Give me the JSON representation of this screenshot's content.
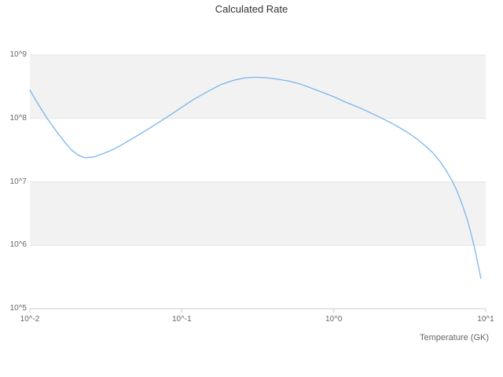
{
  "chart": {
    "title": "Calculated Rate",
    "x_axis_title": "Temperature (GK)"
  },
  "chart_data": {
    "type": "line",
    "title": "Calculated Rate",
    "xlabel": "Temperature (GK)",
    "ylabel": "",
    "x_scale": "log",
    "y_scale": "log",
    "xlim": [
      0.01,
      10
    ],
    "ylim": [
      100000,
      1000000000
    ],
    "grid": "horizontal-bands",
    "legend": "none",
    "band_color": "#f2f2f2",
    "line_color": "#7cb5ec",
    "axis_line_color": "#cccccc",
    "grid_line_color": "#e6e6e6",
    "x_ticks": [
      {
        "label": "10^-2",
        "value": 0.01
      },
      {
        "label": "10^-1",
        "value": 0.1
      },
      {
        "label": "10^0",
        "value": 1
      },
      {
        "label": "10^1",
        "value": 10
      }
    ],
    "y_ticks": [
      {
        "label": "10^5",
        "value": 100000
      },
      {
        "label": "10^6",
        "value": 1000000
      },
      {
        "label": "10^7",
        "value": 10000000
      },
      {
        "label": "10^8",
        "value": 100000000
      },
      {
        "label": "10^9",
        "value": 1000000000
      }
    ],
    "series": [
      {
        "name": "Calculated Rate",
        "x": [
          0.01,
          0.011,
          0.012,
          0.013,
          0.015,
          0.017,
          0.019,
          0.021,
          0.023,
          0.026,
          0.03,
          0.035,
          0.04,
          0.05,
          0.06,
          0.08,
          0.1,
          0.12,
          0.15,
          0.18,
          0.22,
          0.26,
          0.3,
          0.35,
          0.4,
          0.5,
          0.6,
          0.8,
          1.0,
          1.2,
          1.5,
          2.0,
          2.5,
          3.0,
          3.5,
          4.0,
          4.5,
          5.0,
          5.5,
          6.0,
          6.5,
          7.0,
          7.5,
          8.0,
          8.5,
          9.0,
          9.3
        ],
        "y": [
          280000000.0,
          190000000.0,
          135000000.0,
          100000000.0,
          62000000.0,
          42000000.0,
          31000000.0,
          26000000.0,
          24000000.0,
          24500000.0,
          27500000.0,
          32000000.0,
          38000000.0,
          52000000.0,
          68000000.0,
          105000000.0,
          150000000.0,
          200000000.0,
          270000000.0,
          340000000.0,
          400000000.0,
          435000000.0,
          445000000.0,
          440000000.0,
          425000000.0,
          390000000.0,
          350000000.0,
          270000000.0,
          220000000.0,
          180000000.0,
          145000000.0,
          105000000.0,
          80000000.0,
          62000000.0,
          48000000.0,
          37000000.0,
          28500000.0,
          21000000.0,
          15000000.0,
          10500000.0,
          7000000.0,
          4400000.0,
          2700000.0,
          1550000.0,
          850000.0,
          440000.0,
          300000.0
        ]
      }
    ]
  }
}
